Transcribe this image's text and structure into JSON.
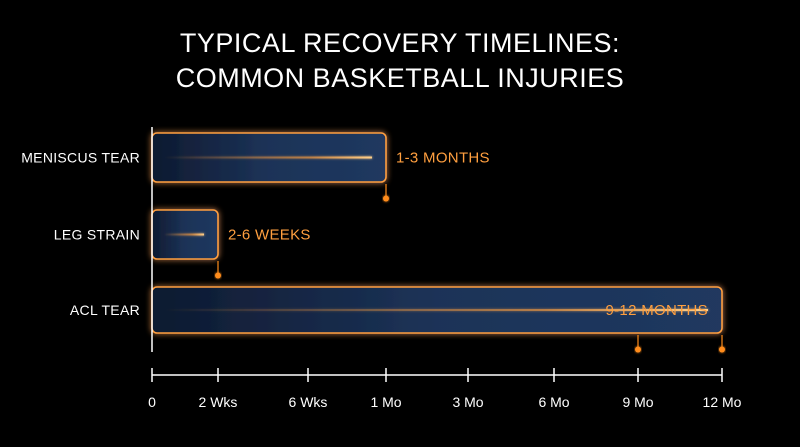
{
  "title_lines": [
    "TYPICAL RECOVERY TIMELINES:",
    "COMMON BASKETBALL INJURIES"
  ],
  "colors": {
    "background": "#000000",
    "bar_fill": "#1a2f52",
    "bar_outline": "#ff9f3f",
    "accent": "#ff8c1a",
    "axis": "#ffffff",
    "text": "#ffffff"
  },
  "chart_data": {
    "type": "bar",
    "orientation": "horizontal",
    "title": "TYPICAL RECOVERY TIMELINES: COMMON BASKETBALL INJURIES",
    "x_ticks": [
      "0",
      "2 Wks",
      "6 Wks",
      "1 Mo",
      "3 Mo",
      "6 Mo",
      "9 Mo",
      "12 Mo"
    ],
    "grid": false,
    "bars": [
      {
        "category": "MENISCUS TEAR",
        "start": "0",
        "end": "1 Mo",
        "label": "1-3 MONTHS",
        "marker_ticks": [
          "1 Mo"
        ]
      },
      {
        "category": "LEG STRAIN",
        "start": "0",
        "end": "2 Wks",
        "label": "2-6 WEEKS",
        "marker_ticks": [
          "2 Wks"
        ]
      },
      {
        "category": "ACL TEAR",
        "start": "0",
        "end": "12 Mo",
        "label": "9-12 MONTHS",
        "marker_ticks": [
          "9 Mo",
          "12 Mo"
        ]
      }
    ]
  }
}
